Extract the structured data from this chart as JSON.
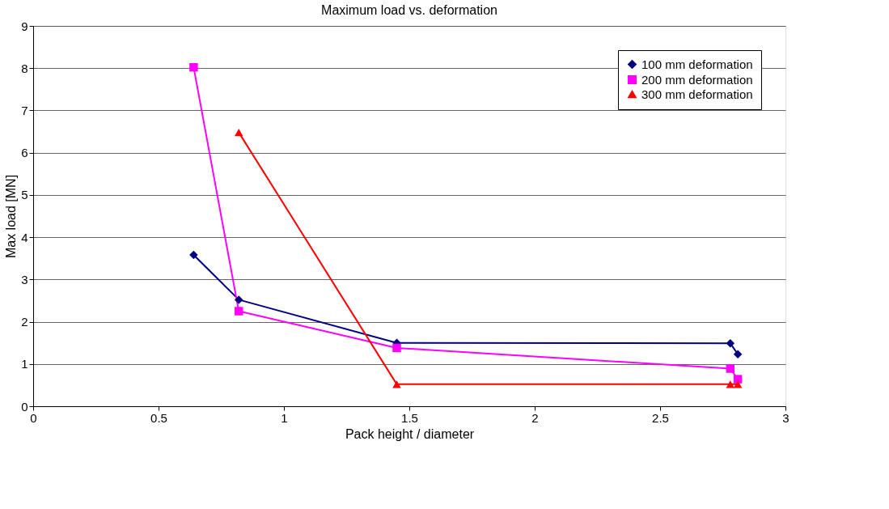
{
  "chart_data": {
    "type": "line",
    "title": "Maximum load  vs. deformation",
    "xlabel": "Pack height / diameter",
    "ylabel": "Max load [MN]",
    "xlim": [
      0,
      3
    ],
    "xticks": [
      0,
      0.5,
      1,
      1.5,
      2,
      2.5,
      3
    ],
    "ylim": [
      0,
      9
    ],
    "yticks": [
      0,
      1,
      2,
      3,
      4,
      5,
      6,
      7,
      8,
      9
    ],
    "grid": "y",
    "legend": "top right",
    "series": [
      {
        "name": "100 mm deformation",
        "color": "#000080",
        "marker": "diamond",
        "x": [
          0.64,
          0.82,
          1.45,
          2.78,
          2.81
        ],
        "values": [
          3.58,
          2.52,
          1.5,
          1.49,
          1.23
        ]
      },
      {
        "name": "200 mm deformation",
        "color": "#ff00ff",
        "marker": "square",
        "x": [
          0.64,
          0.82,
          1.45,
          2.78,
          2.81
        ],
        "values": [
          8.02,
          2.25,
          1.38,
          0.89,
          0.64
        ]
      },
      {
        "name": "300 mm deformation",
        "color": "#ff0000",
        "marker": "triangle",
        "x": [
          0.82,
          1.45,
          2.78,
          2.81
        ],
        "values": [
          6.48,
          0.52,
          0.52,
          0.52
        ]
      }
    ]
  }
}
